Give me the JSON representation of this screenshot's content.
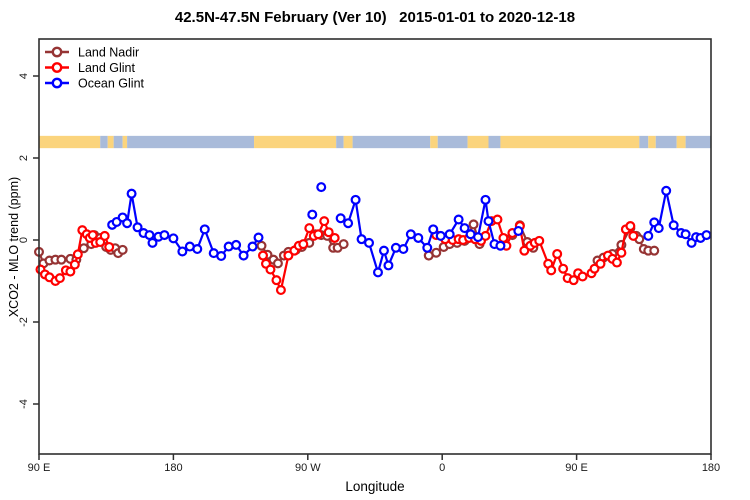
{
  "title": "42.5N-47.5N February (Ver 10)   2015-01-01 to 2020-12-18",
  "legend": {
    "items": [
      {
        "label": "Land Nadir",
        "color": "#963434"
      },
      {
        "label": "Land Glint",
        "color": "#FF0000"
      },
      {
        "label": "Ocean Glint",
        "color": "#0000FF"
      }
    ]
  },
  "chart_data": {
    "type": "line",
    "title": "42.5N-47.5N February (Ver 10)   2015-01-01 to 2020-12-18",
    "xlabel": "Longitude",
    "ylabel": "XCO2 - MLO trend (ppm)",
    "x_axis": {
      "note": "x in degrees eastward from left edge; 0=90E, 90=180, 180=90W, 270=0, 360=90E, 450=180",
      "ticks": [
        0,
        90,
        180,
        270,
        360,
        450
      ],
      "tick_labels": [
        "90 E",
        "180",
        "90 W",
        "0",
        "90 E",
        "180"
      ],
      "range": [
        0,
        450
      ]
    },
    "y_axis": {
      "ticks": [
        -4,
        -2,
        0,
        2,
        4
      ],
      "tick_labels": [
        "-4",
        "-2",
        "0",
        "2",
        "4"
      ],
      "range": [
        -5.1,
        4.9
      ],
      "grid": false
    },
    "legend_position": "top-left",
    "map_strip": {
      "description": "land/ocean band along 42.5N-47.5N",
      "value_range_ppm": [
        2.24,
        2.54
      ],
      "land_color": "#FBD47D",
      "ocean_color": "#A9BBDA",
      "segments": [
        {
          "from": 0,
          "to": 41,
          "surface": "land"
        },
        {
          "from": 41,
          "to": 46,
          "surface": "ocean"
        },
        {
          "from": 46,
          "to": 50,
          "surface": "land"
        },
        {
          "from": 50,
          "to": 56,
          "surface": "ocean"
        },
        {
          "from": 56,
          "to": 59,
          "surface": "land"
        },
        {
          "from": 59,
          "to": 144,
          "surface": "ocean"
        },
        {
          "from": 144,
          "to": 199,
          "surface": "land"
        },
        {
          "from": 199,
          "to": 204,
          "surface": "ocean"
        },
        {
          "from": 204,
          "to": 210,
          "surface": "land"
        },
        {
          "from": 210,
          "to": 262,
          "surface": "ocean"
        },
        {
          "from": 262,
          "to": 267,
          "surface": "land"
        },
        {
          "from": 267,
          "to": 287,
          "surface": "ocean"
        },
        {
          "from": 287,
          "to": 301,
          "surface": "land"
        },
        {
          "from": 301,
          "to": 309,
          "surface": "ocean"
        },
        {
          "from": 309,
          "to": 402,
          "surface": "land"
        },
        {
          "from": 402,
          "to": 408,
          "surface": "ocean"
        },
        {
          "from": 408,
          "to": 413,
          "surface": "land"
        },
        {
          "from": 413,
          "to": 427,
          "surface": "ocean"
        },
        {
          "from": 427,
          "to": 433,
          "surface": "land"
        },
        {
          "from": 433,
          "to": 450,
          "surface": "ocean"
        }
      ]
    },
    "series": [
      {
        "name": "Land Nadir",
        "color": "#963434",
        "segments": [
          [
            [
              0,
              -0.29
            ],
            [
              3,
              -0.57
            ],
            [
              7,
              -0.5
            ],
            [
              11,
              -0.48
            ],
            [
              15,
              -0.48
            ],
            [
              21,
              -0.46
            ],
            [
              25,
              -0.48
            ],
            [
              30,
              -0.2
            ],
            [
              35,
              -0.1
            ],
            [
              37,
              0.12
            ],
            [
              41,
              0.05
            ],
            [
              45,
              -0.17
            ],
            [
              48,
              -0.24
            ],
            [
              51,
              -0.2
            ],
            [
              53,
              -0.32
            ],
            [
              56,
              -0.24
            ]
          ],
          [
            [
              149,
              -0.14
            ],
            [
              153,
              -0.36
            ],
            [
              157,
              -0.48
            ],
            [
              160,
              -0.57
            ],
            [
              164,
              -0.38
            ],
            [
              167,
              -0.29
            ],
            [
              172,
              -0.24
            ],
            [
              176,
              -0.17
            ],
            [
              181,
              -0.07
            ],
            [
              185,
              0.14
            ],
            [
              189,
              0.12
            ],
            [
              193,
              0.1
            ],
            [
              197,
              -0.19
            ],
            [
              200,
              -0.19
            ],
            [
              204,
              -0.1
            ]
          ],
          [
            [
              261,
              -0.38
            ],
            [
              266,
              -0.31
            ],
            [
              271,
              -0.17
            ],
            [
              275,
              -0.1
            ],
            [
              280,
              -0.07
            ],
            [
              285,
              -0.02
            ],
            [
              291,
              0.38
            ],
            [
              295,
              -0.1
            ]
          ],
          [
            [
              317,
              0.12
            ],
            [
              322,
              0.36
            ],
            [
              327,
              -0.05
            ],
            [
              331,
              -0.19
            ]
          ],
          [
            [
              374,
              -0.5
            ],
            [
              378,
              -0.43
            ],
            [
              384,
              -0.34
            ],
            [
              390,
              -0.12
            ],
            [
              396,
              0.29
            ],
            [
              400,
              0.1
            ],
            [
              402,
              0.02
            ],
            [
              405,
              -0.22
            ],
            [
              408,
              -0.26
            ],
            [
              412,
              -0.26
            ]
          ]
        ]
      },
      {
        "name": "Land Glint",
        "color": "#FF0000",
        "segments": [
          [
            [
              1,
              -0.72
            ],
            [
              4,
              -0.84
            ],
            [
              7,
              -0.91
            ],
            [
              11,
              -1.0
            ],
            [
              14,
              -0.93
            ],
            [
              18,
              -0.74
            ],
            [
              21,
              -0.77
            ],
            [
              24,
              -0.6
            ],
            [
              26,
              -0.35
            ],
            [
              29,
              0.24
            ],
            [
              32,
              0.14
            ],
            [
              34,
              0.05
            ],
            [
              36,
              0.12
            ],
            [
              38,
              -0.07
            ],
            [
              41,
              -0.05
            ],
            [
              44,
              0.1
            ],
            [
              47,
              -0.17
            ]
          ],
          [
            [
              150,
              -0.38
            ],
            [
              152,
              -0.58
            ],
            [
              155,
              -0.72
            ],
            [
              159,
              -0.98
            ],
            [
              162,
              -1.22
            ],
            [
              167,
              -0.38
            ],
            [
              171,
              -0.26
            ],
            [
              174,
              -0.14
            ],
            [
              177,
              -0.1
            ],
            [
              181,
              0.29
            ],
            [
              184,
              0.1
            ],
            [
              187,
              0.14
            ],
            [
              191,
              0.46
            ],
            [
              194,
              0.19
            ],
            [
              198,
              0.05
            ]
          ],
          [
            [
              266,
              0.12
            ],
            [
              272,
              0.02
            ],
            [
              277,
              0.0
            ],
            [
              281,
              0.02
            ],
            [
              284,
              0.0
            ],
            [
              288,
              0.05
            ],
            [
              292,
              0.02
            ],
            [
              296,
              -0.02
            ],
            [
              299,
              0.1
            ],
            [
              303,
              0.46
            ],
            [
              307,
              0.5
            ],
            [
              311,
              0.05
            ],
            [
              313,
              -0.14
            ],
            [
              317,
              0.17
            ],
            [
              322,
              0.34
            ],
            [
              325,
              -0.26
            ],
            [
              329,
              -0.14
            ],
            [
              332,
              -0.07
            ],
            [
              335,
              -0.02
            ],
            [
              341,
              -0.58
            ],
            [
              343,
              -0.74
            ],
            [
              347,
              -0.34
            ],
            [
              351,
              -0.7
            ],
            [
              354,
              -0.93
            ],
            [
              358,
              -0.98
            ],
            [
              361,
              -0.81
            ],
            [
              364,
              -0.89
            ],
            [
              370,
              -0.81
            ],
            [
              372,
              -0.7
            ],
            [
              376,
              -0.58
            ],
            [
              381,
              -0.38
            ],
            [
              384,
              -0.46
            ],
            [
              387,
              -0.55
            ],
            [
              390,
              -0.31
            ],
            [
              393,
              0.26
            ],
            [
              396,
              0.34
            ],
            [
              398,
              0.1
            ]
          ]
        ]
      },
      {
        "name": "Ocean Glint",
        "color": "#0000FF",
        "segments": [
          [
            [
              49,
              0.37
            ],
            [
              52,
              0.44
            ],
            [
              56,
              0.55
            ],
            [
              59,
              0.41
            ],
            [
              62,
              1.13
            ],
            [
              66,
              0.31
            ],
            [
              70,
              0.17
            ],
            [
              74,
              0.12
            ],
            [
              76,
              -0.07
            ],
            [
              80,
              0.08
            ],
            [
              84,
              0.12
            ],
            [
              90,
              0.04
            ],
            [
              96,
              -0.28
            ],
            [
              101,
              -0.16
            ],
            [
              106,
              -0.22
            ],
            [
              111,
              0.26
            ],
            [
              117,
              -0.32
            ],
            [
              122,
              -0.39
            ],
            [
              127,
              -0.16
            ],
            [
              132,
              -0.12
            ],
            [
              137,
              -0.38
            ],
            [
              143,
              -0.16
            ],
            [
              147,
              0.06
            ]
          ],
          [
            [
              183,
              0.62
            ]
          ],
          [
            [
              189,
              1.29
            ]
          ],
          [
            [
              202,
              0.53
            ],
            [
              207,
              0.41
            ],
            [
              212,
              0.98
            ],
            [
              216,
              0.02
            ],
            [
              221,
              -0.07
            ],
            [
              227,
              -0.79
            ],
            [
              231,
              -0.26
            ],
            [
              234,
              -0.62
            ],
            [
              239,
              -0.19
            ],
            [
              244,
              -0.22
            ],
            [
              249,
              0.14
            ],
            [
              254,
              0.05
            ],
            [
              260,
              -0.19
            ],
            [
              264,
              0.26
            ],
            [
              269,
              0.1
            ],
            [
              275,
              0.14
            ],
            [
              281,
              0.5
            ],
            [
              285,
              0.29
            ],
            [
              289,
              0.14
            ],
            [
              294,
              0.07
            ],
            [
              299,
              0.98
            ],
            [
              301,
              0.46
            ],
            [
              305,
              -0.1
            ],
            [
              309,
              -0.14
            ]
          ],
          [
            [
              321,
              0.22
            ]
          ],
          [
            [
              408,
              0.1
            ],
            [
              412,
              0.43
            ],
            [
              415,
              0.29
            ],
            [
              420,
              1.2
            ],
            [
              425,
              0.36
            ],
            [
              430,
              0.17
            ],
            [
              433,
              0.14
            ],
            [
              437,
              -0.07
            ],
            [
              440,
              0.07
            ],
            [
              443,
              0.05
            ],
            [
              447,
              0.12
            ]
          ]
        ]
      }
    ]
  }
}
